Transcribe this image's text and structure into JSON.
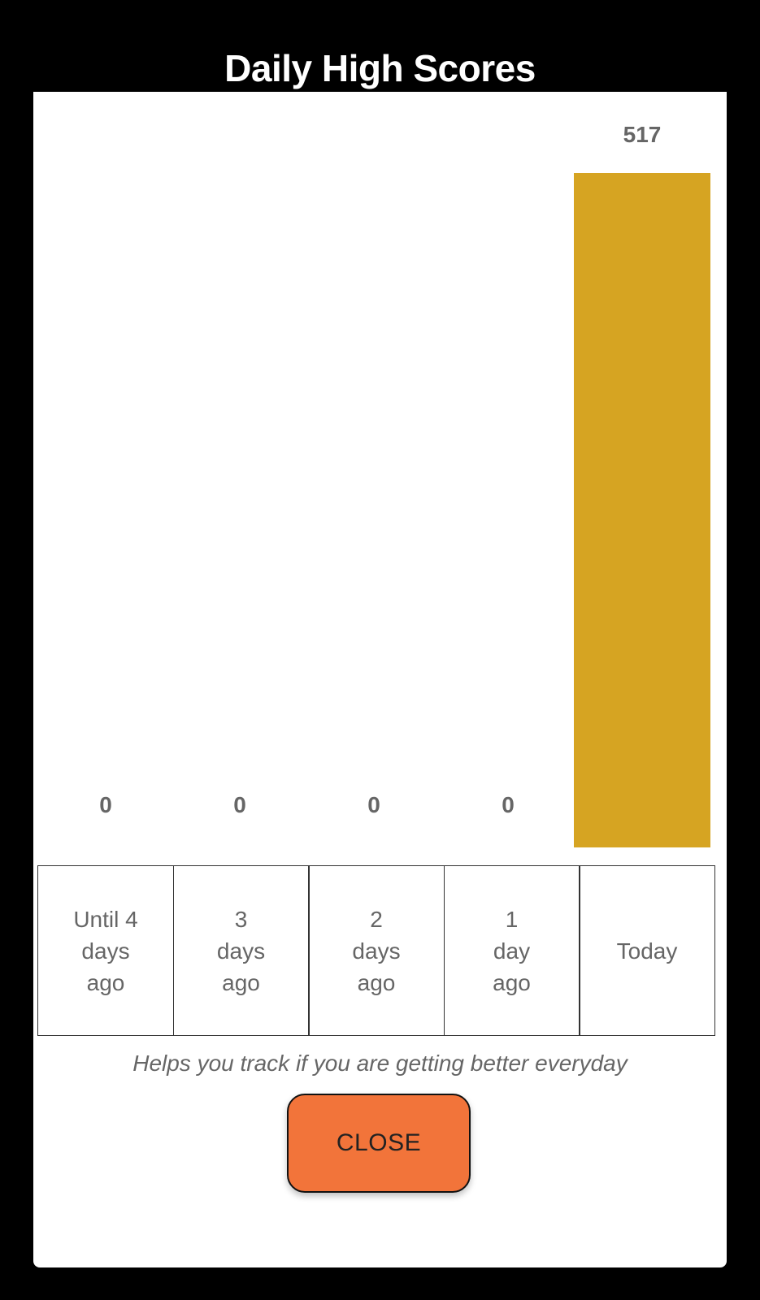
{
  "modal": {
    "title": "Daily High Scores",
    "helper_text": "Helps you track if you are getting better everyday",
    "close_label": "CLOSE"
  },
  "colors": {
    "bar": "#d6a422",
    "close_button": "#f2743a",
    "text_muted": "#666666"
  },
  "chart_data": {
    "type": "bar",
    "categories": [
      "Until 4\ndays\nago",
      "3\ndays\nago",
      "2\ndays\nago",
      "1\nday\nago",
      "Today"
    ],
    "values": [
      0,
      0,
      0,
      0,
      517
    ],
    "value_labels": [
      "0",
      "0",
      "0",
      "0",
      "517"
    ]
  }
}
